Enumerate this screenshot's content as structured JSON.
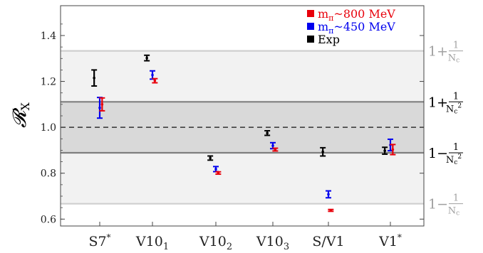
{
  "chart_data": {
    "type": "scatter",
    "ylabel": "𝓡",
    "ylabel_sub": "X",
    "ylim": [
      0.57,
      1.53
    ],
    "yticks": [
      "0.6",
      "0.8",
      "1.0",
      "1.2",
      "1.4"
    ],
    "categories": [
      {
        "main": "S7",
        "sup": "*",
        "sub": ""
      },
      {
        "main": "V10",
        "sup": "",
        "sub": "1"
      },
      {
        "main": "V10",
        "sup": "",
        "sub": "2"
      },
      {
        "main": "V10",
        "sup": "",
        "sub": "3"
      },
      {
        "main": "S/V1",
        "sup": "",
        "sub": ""
      },
      {
        "main": "V1",
        "sup": "*",
        "sub": ""
      }
    ],
    "legend": [
      {
        "text": "m",
        "sub": "π",
        "rest": "~800 MeV",
        "color": "#e8000b"
      },
      {
        "text": "m",
        "sub": "π",
        "rest": "~450 MeV",
        "color": "#0000ee"
      },
      {
        "text": "Exp",
        "sub": "",
        "rest": "",
        "color": "#000000"
      }
    ],
    "series": [
      {
        "key": "exp",
        "color": "#000000",
        "offset": -0.28,
        "values": [
          1.215,
          1.302,
          0.866,
          0.975,
          0.893,
          0.898
        ],
        "errors": [
          0.035,
          0.012,
          0.009,
          0.01,
          0.018,
          0.015
        ]
      },
      {
        "key": "mpi450",
        "color": "#0000ee",
        "offset": 0.0,
        "values": [
          1.085,
          1.228,
          0.818,
          0.92,
          0.708,
          0.923
        ],
        "errors": [
          0.045,
          0.018,
          0.011,
          0.013,
          0.015,
          0.025
        ]
      },
      {
        "key": "mpi800",
        "color": "#e8000b",
        "offset": 0.12,
        "values": [
          1.1,
          1.203,
          0.801,
          0.903,
          0.638,
          0.903
        ],
        "errors": [
          0.028,
          0.009,
          0.005,
          0.006,
          0.004,
          0.022
        ]
      }
    ],
    "bands": [
      {
        "from": 0.667,
        "to": 1.333,
        "color": "#f2f2f2"
      },
      {
        "from": 0.889,
        "to": 1.111,
        "color": "#d9d9d9"
      }
    ],
    "hlines": [
      {
        "y": 1.333,
        "color": "#cfcfcf",
        "dash": false
      },
      {
        "y": 0.667,
        "color": "#cfcfcf",
        "dash": false
      },
      {
        "y": 1.111,
        "color": "#7f7f7f",
        "dash": false
      },
      {
        "y": 0.889,
        "color": "#7f7f7f",
        "dash": false
      },
      {
        "y": 1.0,
        "color": "#333333",
        "dash": true
      }
    ],
    "side_labels": [
      {
        "y": 1.333,
        "sign": "+",
        "den": "N",
        "den_sub": "c",
        "sq": false,
        "color": "#a0a0a0"
      },
      {
        "y": 1.111,
        "sign": "+",
        "den": "N",
        "den_sub": "c",
        "sq": true,
        "color": "#000000"
      },
      {
        "y": 0.889,
        "sign": "−",
        "den": "N",
        "den_sub": "c",
        "sq": true,
        "color": "#000000"
      },
      {
        "y": 0.667,
        "sign": "−",
        "den": "N",
        "den_sub": "c",
        "sq": false,
        "color": "#a0a0a0"
      }
    ],
    "side_num": "1",
    "side_one": "1"
  }
}
